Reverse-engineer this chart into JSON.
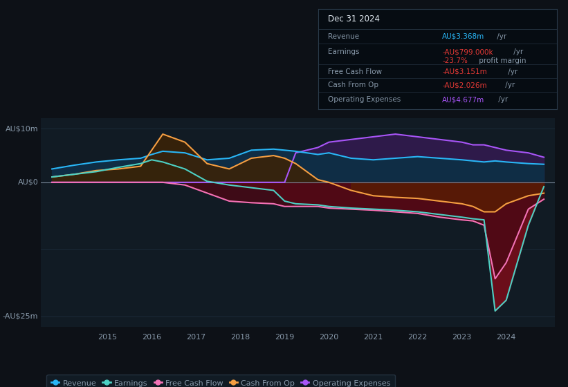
{
  "bg_color": "#0d1117",
  "plot_bg_color": "#111b24",
  "ylabel_top": "AU$10m",
  "ylabel_bottom": "-AU$25m",
  "ylabel_zero": "AU$0",
  "x_years": [
    2013.75,
    2014.25,
    2014.75,
    2015.25,
    2015.75,
    2016.0,
    2016.25,
    2016.75,
    2017.25,
    2017.75,
    2018.25,
    2018.75,
    2019.0,
    2019.25,
    2019.75,
    2020.0,
    2020.5,
    2021.0,
    2021.5,
    2022.0,
    2022.5,
    2023.0,
    2023.25,
    2023.5,
    2023.75,
    2024.0,
    2024.5,
    2024.85
  ],
  "revenue": [
    2.5,
    3.2,
    3.8,
    4.2,
    4.5,
    5.2,
    5.8,
    5.5,
    4.2,
    4.5,
    6.0,
    6.2,
    6.0,
    5.8,
    5.2,
    5.5,
    4.5,
    4.2,
    4.5,
    4.8,
    4.5,
    4.2,
    4.0,
    3.8,
    4.0,
    3.8,
    3.5,
    3.37
  ],
  "earnings": [
    1.0,
    1.5,
    2.0,
    2.8,
    3.5,
    4.2,
    3.8,
    2.5,
    0.2,
    -0.5,
    -1.0,
    -1.5,
    -3.5,
    -4.0,
    -4.2,
    -4.5,
    -4.8,
    -5.0,
    -5.2,
    -5.5,
    -6.0,
    -6.5,
    -6.8,
    -7.0,
    -24.0,
    -22.0,
    -8.0,
    -0.8
  ],
  "free_cash_flow": [
    0.0,
    0.0,
    0.0,
    0.0,
    0.0,
    0.0,
    0.0,
    -0.5,
    -2.0,
    -3.5,
    -3.8,
    -4.0,
    -4.5,
    -4.5,
    -4.5,
    -4.8,
    -5.0,
    -5.2,
    -5.5,
    -5.8,
    -6.5,
    -7.0,
    -7.2,
    -8.0,
    -18.0,
    -15.0,
    -5.0,
    -3.15
  ],
  "cash_from_op": [
    1.0,
    1.5,
    2.2,
    2.5,
    3.0,
    6.0,
    9.0,
    7.5,
    3.5,
    2.5,
    4.5,
    5.0,
    4.5,
    3.5,
    0.5,
    0.0,
    -1.5,
    -2.5,
    -2.8,
    -3.0,
    -3.5,
    -4.0,
    -4.5,
    -5.5,
    -5.5,
    -4.0,
    -2.5,
    -2.03
  ],
  "op_expenses": [
    0.0,
    0.0,
    0.0,
    0.0,
    0.0,
    0.0,
    0.0,
    0.0,
    0.0,
    0.0,
    0.0,
    0.0,
    0.0,
    5.5,
    6.5,
    7.5,
    8.0,
    8.5,
    9.0,
    8.5,
    8.0,
    7.5,
    7.0,
    7.0,
    6.5,
    6.0,
    5.5,
    4.68
  ],
  "revenue_color": "#29b6f6",
  "earnings_color": "#4dd0c4",
  "fcf_color": "#f472b6",
  "cashop_color": "#f59e42",
  "opex_color": "#a855f7",
  "zero_line_color": "#7a8899",
  "grid_color": "#1e2d3d",
  "text_color": "#8899aa",
  "info_bg": "#060c12",
  "info_border": "#2a3a4a",
  "info_title_color": "#e0e8f0",
  "info_rev_color": "#29b6f6",
  "info_earn_color": "#e53935",
  "info_margin_color": "#e53935",
  "info_fcf_color": "#e53935",
  "info_cashop_color": "#e53935",
  "info_opex_color": "#a855f7",
  "legend_labels": [
    "Revenue",
    "Earnings",
    "Free Cash Flow",
    "Cash From Op",
    "Operating Expenses"
  ],
  "legend_colors": [
    "#29b6f6",
    "#4dd0c4",
    "#f472b6",
    "#f59e42",
    "#a855f7"
  ],
  "ylim": [
    -27,
    12
  ],
  "xlim_start": 2013.5,
  "xlim_end": 2025.1
}
